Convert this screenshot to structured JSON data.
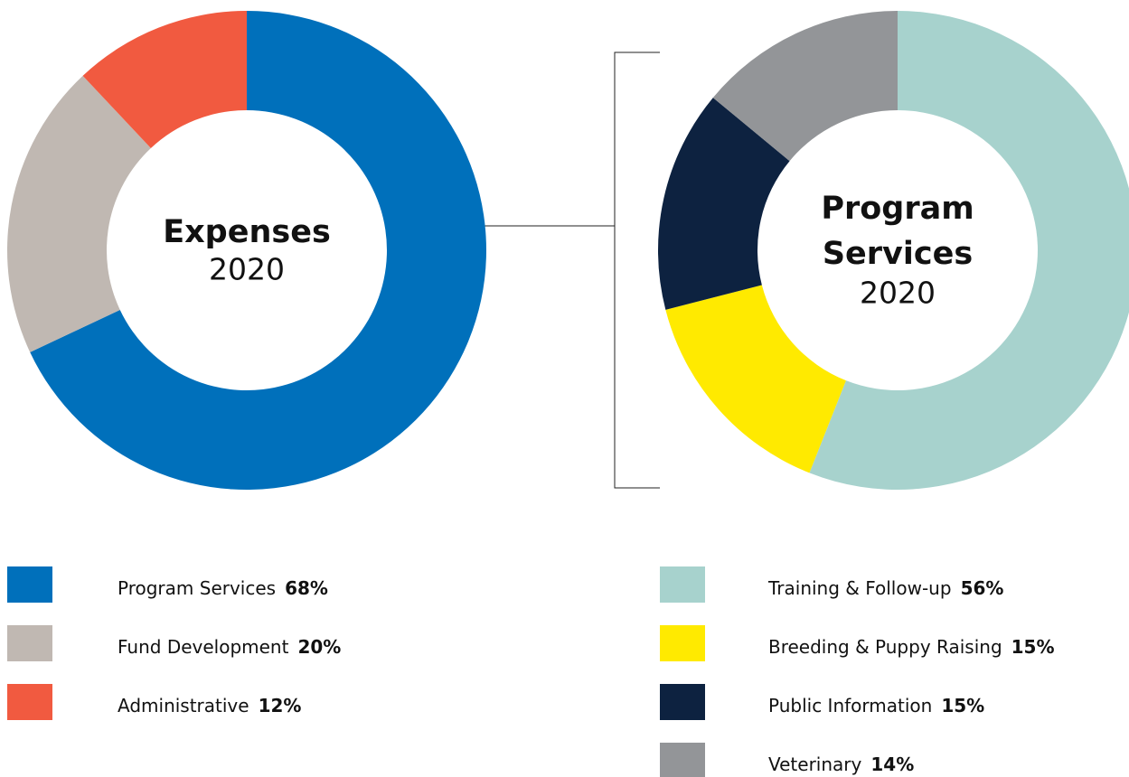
{
  "chart_data": [
    {
      "type": "pie",
      "title": [
        "Expenses"
      ],
      "subtitle": "2020",
      "categories": [
        "Program Services",
        "Fund Development",
        "Administrative"
      ],
      "values": [
        68,
        20,
        12
      ],
      "value_labels": [
        "68%",
        "20%",
        "12%"
      ],
      "colors": [
        "#0070bb",
        "#c0b8b2",
        "#f15a40"
      ]
    },
    {
      "type": "pie",
      "title": [
        "Program",
        "Services"
      ],
      "subtitle": "2020",
      "categories": [
        "Training & Follow-up",
        "Breeding & Puppy Raising",
        "Public Information",
        "Veterinary"
      ],
      "values": [
        56,
        15,
        15,
        14
      ],
      "value_labels": [
        "56%",
        "15%",
        "15%",
        "14%"
      ],
      "colors": [
        "#a7d2cd",
        "#ffea00",
        "#0d2240",
        "#939598"
      ]
    }
  ]
}
